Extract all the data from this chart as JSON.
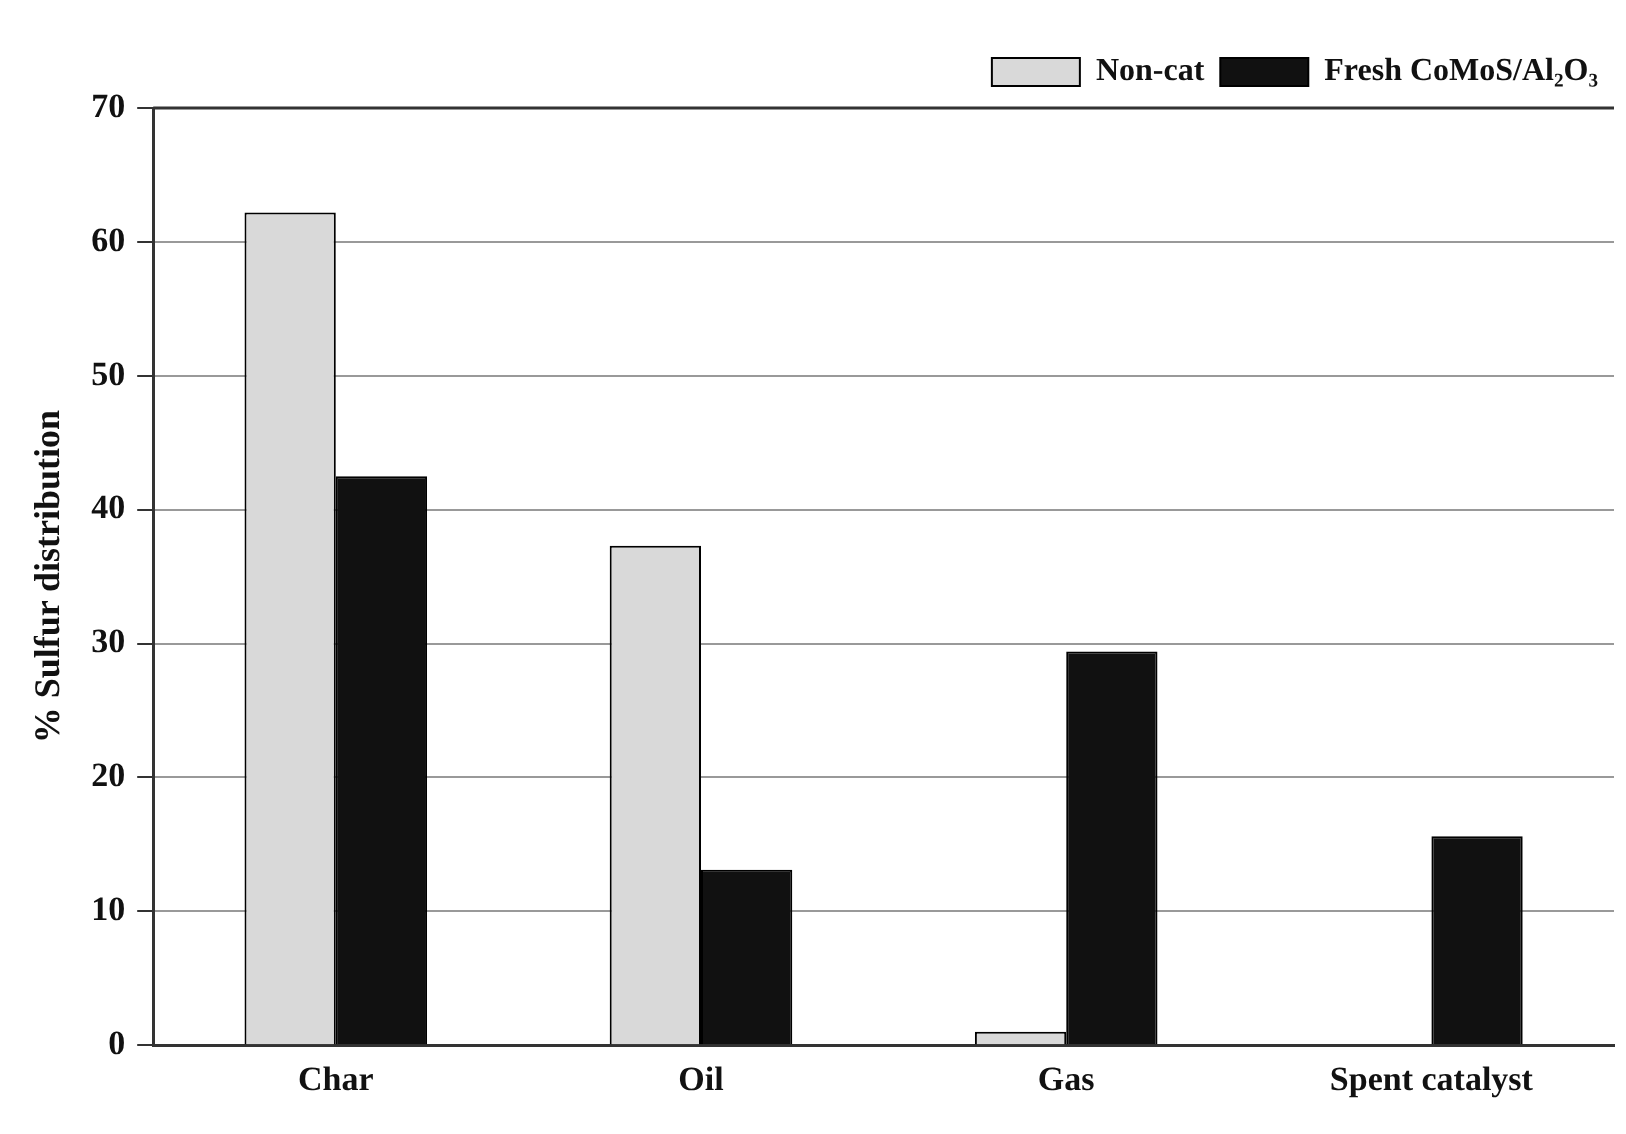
{
  "chart_data": {
    "type": "bar",
    "ylabel": "% Sulfur distribution",
    "categories": [
      "Char",
      "Oil",
      "Gas",
      "Spent catalyst"
    ],
    "series": [
      {
        "name": "Non-cat",
        "color": "#d9d9d9",
        "values": [
          62.2,
          37.3,
          1.0,
          null
        ]
      },
      {
        "name": "Fresh CoMoS/Al₂O₃",
        "color": "#111111",
        "values": [
          42.5,
          13.1,
          29.4,
          15.6
        ]
      }
    ],
    "ylim": [
      0,
      70
    ],
    "yticks": [
      0,
      10,
      20,
      30,
      40,
      50,
      60,
      70
    ],
    "grid": "y",
    "legend": "top right"
  }
}
